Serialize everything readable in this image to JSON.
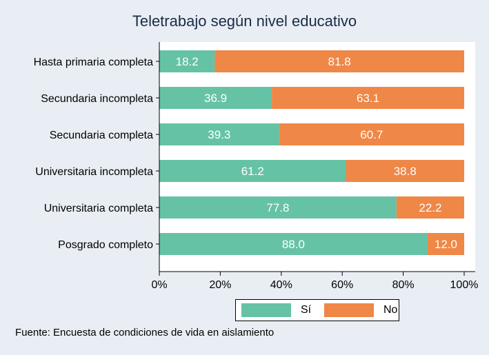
{
  "chart_data": {
    "type": "bar",
    "orientation": "horizontal",
    "stacked": true,
    "title": "Teletrabajo según nivel educativo",
    "categories": [
      "Hasta primaria completa",
      "Secundaria incompleta",
      "Secundaria completa",
      "Universitaria incompleta",
      "Universitaria completa",
      "Posgrado completo"
    ],
    "series": [
      {
        "name": "Sí",
        "values": [
          18.2,
          36.9,
          39.3,
          61.2,
          77.8,
          88.0
        ],
        "labels": [
          "18.2",
          "36.9",
          "39.3",
          "61.2",
          "77.8",
          "88.0"
        ],
        "color": "#66c2a5"
      },
      {
        "name": "No",
        "values": [
          81.8,
          63.1,
          60.7,
          38.8,
          22.2,
          12.0
        ],
        "labels": [
          "81.8",
          "63.1",
          "60.7",
          "38.8",
          "22.2",
          "12.0"
        ],
        "color": "#ef8747"
      }
    ],
    "xlim": [
      0,
      100
    ],
    "xticks": [
      0,
      20,
      40,
      60,
      80,
      100
    ],
    "xtick_labels": [
      "0%",
      "20%",
      "40%",
      "60%",
      "80%",
      "100%"
    ],
    "xlabel": "",
    "ylabel": "",
    "grid": false,
    "legend_position": "bottom"
  },
  "source": "Fuente: Encuesta de condiciones de vida en aislamiento"
}
